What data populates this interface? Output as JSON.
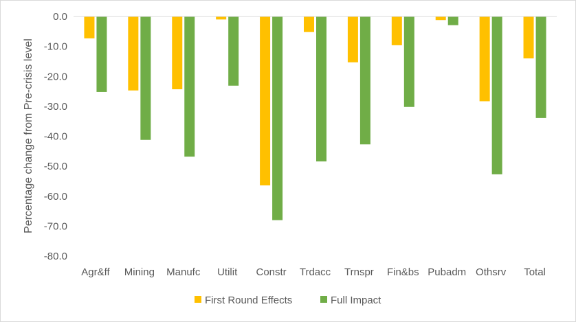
{
  "chart_data": {
    "type": "bar",
    "title": "",
    "xlabel": "",
    "ylabel": "Percentage change from Pre-crisis level",
    "ylim": [
      -80,
      0
    ],
    "yticks": [
      "0.0",
      "-10.0",
      "-20.0",
      "-30.0",
      "-40.0",
      "-50.0",
      "-60.0",
      "-70.0",
      "-80.0"
    ],
    "grid": false,
    "legend_position": "bottom",
    "categories": [
      "Agr&ff",
      "Mining",
      "Manufc",
      "Utilit",
      "Constr",
      "Trdacc",
      "Trnspr",
      "Fin&bs",
      "Pubadm",
      "Othsrv",
      "Total"
    ],
    "series": [
      {
        "name": "First Round Effects",
        "color": "#FFC000",
        "values": [
          -7.3,
          -24.7,
          -24.3,
          -1.0,
          -56.4,
          -5.2,
          -15.3,
          -9.6,
          -1.2,
          -28.3,
          -14.0
        ]
      },
      {
        "name": "Full Impact",
        "color": "#70AD47",
        "values": [
          -25.2,
          -41.2,
          -46.8,
          -23.1,
          -68.0,
          -48.4,
          -42.7,
          -30.2,
          -2.9,
          -52.7,
          -33.9
        ]
      }
    ]
  }
}
